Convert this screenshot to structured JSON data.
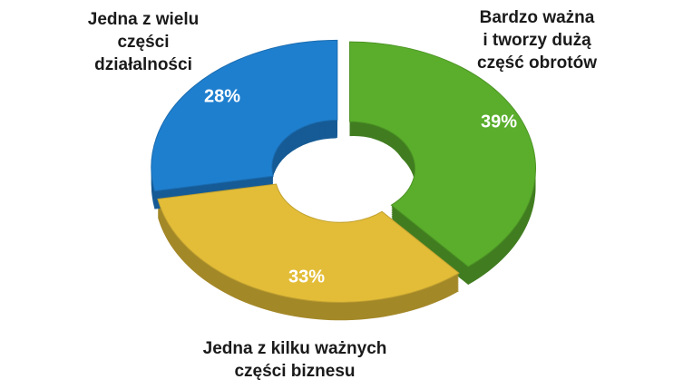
{
  "chart_data": {
    "type": "donut",
    "categories": [
      [
        "Bardzo ważna",
        "i tworzy dużą",
        "część obrotów"
      ],
      [
        "Jedna z kilku ważnych",
        "części biznesu"
      ],
      [
        "Jedna z wielu",
        "części",
        "działalności"
      ]
    ],
    "values": [
      39,
      33,
      28
    ],
    "value_labels": [
      "39%",
      "33%",
      "28%"
    ],
    "colors": [
      "#5aae2c",
      "#e3bd38",
      "#1f7fcf"
    ]
  }
}
